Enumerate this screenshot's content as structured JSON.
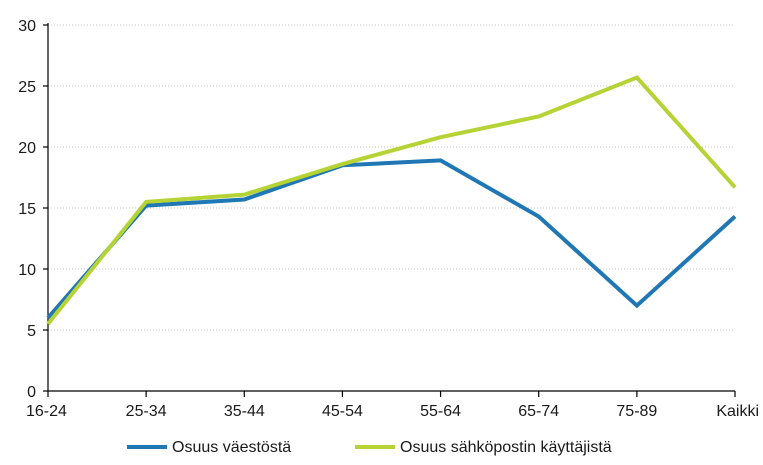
{
  "chart_data": {
    "type": "line",
    "categories": [
      "16-24",
      "25-34",
      "35-44",
      "45-54",
      "55-64",
      "65-74",
      "75-89",
      "Kaikki"
    ],
    "series": [
      {
        "name": "Osuus väestöstä",
        "values": [
          6.0,
          15.2,
          15.7,
          18.5,
          18.9,
          14.3,
          7.0,
          14.3
        ],
        "color": "#1f77b4"
      },
      {
        "name": "Osuus sähköpostin käyttäjistä",
        "values": [
          5.5,
          15.5,
          16.1,
          18.6,
          20.8,
          22.5,
          25.7,
          16.7
        ],
        "color": "#b5d334"
      }
    ],
    "yticks": [
      0,
      5,
      10,
      15,
      20,
      25,
      30
    ],
    "ylim": [
      0,
      30
    ],
    "grid": true,
    "legend_position": "bottom",
    "axis_color": "#000000",
    "grid_color": "#c8c8c8"
  }
}
